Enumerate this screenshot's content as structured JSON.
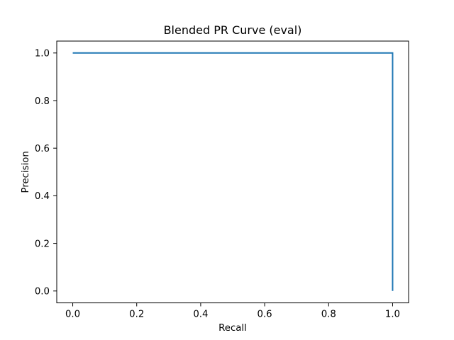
{
  "chart_data": {
    "type": "line",
    "title": "Blended PR Curve (eval)",
    "xlabel": "Recall",
    "ylabel": "Precision",
    "xlim": [
      -0.05,
      1.05
    ],
    "ylim": [
      -0.05,
      1.05
    ],
    "xticks": [
      0.0,
      0.2,
      0.4,
      0.6,
      0.8,
      1.0
    ],
    "yticks": [
      0.0,
      0.2,
      0.4,
      0.6,
      0.8,
      1.0
    ],
    "xtick_labels": [
      "0.0",
      "0.2",
      "0.4",
      "0.6",
      "0.8",
      "1.0"
    ],
    "ytick_labels": [
      "0.0",
      "0.2",
      "0.4",
      "0.6",
      "0.8",
      "1.0"
    ],
    "grid": false,
    "legend": false,
    "series": [
      {
        "color": "#1f77b4",
        "x": [
          0.0,
          1.0,
          1.0
        ],
        "y": [
          1.0,
          1.0,
          0.0
        ]
      }
    ]
  }
}
